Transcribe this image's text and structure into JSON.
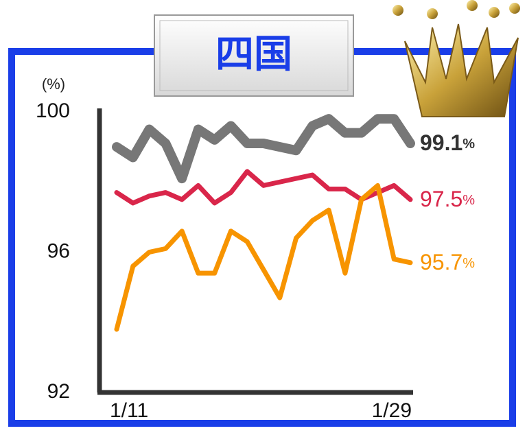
{
  "chart_data": {
    "type": "line",
    "title": "四国",
    "y_label": "(%)",
    "label_unit": "%",
    "categories": [
      "1/11",
      null,
      null,
      null,
      null,
      null,
      null,
      null,
      null,
      null,
      null,
      null,
      null,
      null,
      null,
      null,
      null,
      null,
      "1/29"
    ],
    "ylim": [
      92,
      100
    ],
    "yticks": [
      92,
      96,
      100
    ],
    "series": [
      {
        "color": "#777777",
        "label": "99.1",
        "values": [
          99.0,
          98.7,
          99.5,
          99.1,
          98.1,
          99.5,
          99.2,
          99.6,
          99.1,
          99.1,
          99.0,
          98.9,
          99.6,
          99.8,
          99.4,
          99.4,
          99.8,
          99.8,
          99.1
        ]
      },
      {
        "color": "#d9264a",
        "label": "97.5",
        "values": [
          97.7,
          97.4,
          97.6,
          97.7,
          97.5,
          97.9,
          97.4,
          97.7,
          98.3,
          97.9,
          98.0,
          98.1,
          98.2,
          97.8,
          97.8,
          97.5,
          97.7,
          97.9,
          97.5
        ]
      },
      {
        "color": "#f79400",
        "label": "95.7",
        "values": [
          93.8,
          95.6,
          96.0,
          96.1,
          96.6,
          95.4,
          95.4,
          96.6,
          96.3,
          95.5,
          94.7,
          96.4,
          96.9,
          97.2,
          95.4,
          97.5,
          97.9,
          95.8,
          95.7
        ]
      }
    ]
  }
}
